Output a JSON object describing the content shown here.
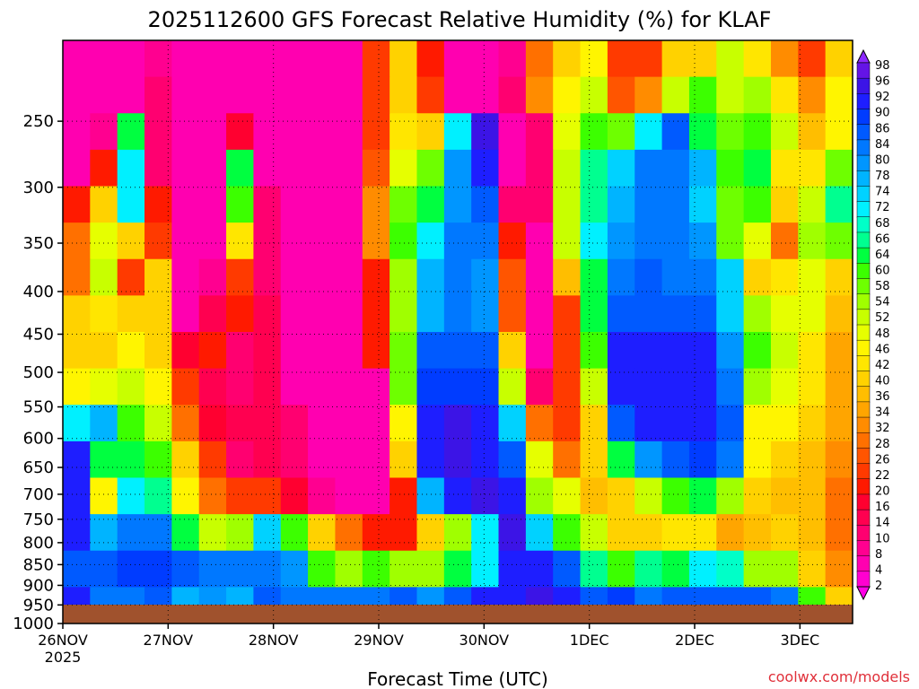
{
  "chart_data": {
    "type": "heatmap",
    "title": "2025112600 GFS Forecast Relative Humidity (%) for KLAF",
    "xlabel": "Forecast Time (UTC)",
    "ylabel": "",
    "x_ticks": [
      "26NOV",
      "27NOV",
      "28NOV",
      "29NOV",
      "30NOV",
      "1DEC",
      "2DEC",
      "3DEC"
    ],
    "x_tick_days": [
      0,
      1,
      2,
      3,
      4,
      5,
      6,
      7
    ],
    "x_tick_year": "2025",
    "xlim_days": [
      0,
      7.5
    ],
    "y_ticks": [
      250,
      300,
      350,
      400,
      450,
      500,
      550,
      600,
      650,
      700,
      750,
      800,
      850,
      900,
      950,
      1000
    ],
    "ylim": [
      200,
      1000
    ],
    "y_scale": "log",
    "grid": true,
    "legend": "right",
    "colorbar_levels": [
      2,
      4,
      8,
      10,
      14,
      16,
      20,
      22,
      26,
      28,
      32,
      34,
      36,
      40,
      42,
      46,
      48,
      52,
      54,
      58,
      60,
      64,
      66,
      68,
      72,
      74,
      78,
      80,
      84,
      86,
      90,
      92,
      96,
      98
    ],
    "colorbar_colors": [
      "#ff00e6",
      "#ff00d0",
      "#ff00b0",
      "#ff0090",
      "#ff0070",
      "#ff0050",
      "#ff0030",
      "#ff1a00",
      "#ff3a00",
      "#ff5500",
      "#ff7000",
      "#ff8c00",
      "#ffa500",
      "#ffbe00",
      "#ffd200",
      "#ffe600",
      "#fff500",
      "#e6ff00",
      "#c8ff00",
      "#a0ff00",
      "#6eff00",
      "#3cff00",
      "#00ff40",
      "#00ff90",
      "#00ffc8",
      "#00f0ff",
      "#00d2ff",
      "#00b4ff",
      "#0096ff",
      "#0078ff",
      "#005aff",
      "#003cff",
      "#1e1eff",
      "#3c14e6",
      "#6414e6",
      "#8c28ff"
    ],
    "rh_samples_percent": [
      [
        5,
        5,
        5,
        8,
        5,
        5,
        5,
        5,
        5,
        5,
        5,
        22,
        40,
        20,
        5,
        5,
        8,
        28,
        40,
        46,
        22,
        22,
        40,
        40,
        50,
        42,
        30,
        22,
        40
      ],
      [
        5,
        5,
        5,
        10,
        5,
        5,
        5,
        5,
        5,
        5,
        5,
        22,
        40,
        24,
        5,
        5,
        10,
        30,
        46,
        50,
        26,
        30,
        52,
        60,
        50,
        54,
        44,
        30,
        46
      ],
      [
        5,
        8,
        62,
        10,
        5,
        5,
        16,
        5,
        5,
        5,
        5,
        22,
        44,
        40,
        70,
        94,
        5,
        10,
        48,
        60,
        56,
        70,
        86,
        64,
        56,
        60,
        50,
        36,
        46
      ],
      [
        5,
        20,
        70,
        10,
        5,
        5,
        64,
        5,
        5,
        5,
        5,
        26,
        48,
        56,
        80,
        90,
        5,
        10,
        50,
        66,
        74,
        82,
        84,
        76,
        60,
        64,
        42,
        44,
        58
      ],
      [
        20,
        40,
        72,
        20,
        5,
        5,
        60,
        10,
        5,
        5,
        5,
        30,
        56,
        64,
        80,
        86,
        10,
        10,
        50,
        66,
        78,
        82,
        82,
        74,
        56,
        60,
        40,
        50,
        66
      ],
      [
        28,
        48,
        40,
        22,
        5,
        5,
        44,
        10,
        5,
        5,
        5,
        30,
        60,
        70,
        82,
        84,
        20,
        5,
        50,
        70,
        80,
        84,
        84,
        80,
        58,
        48,
        28,
        54,
        58
      ],
      [
        28,
        52,
        22,
        40,
        5,
        8,
        24,
        10,
        5,
        5,
        5,
        20,
        54,
        76,
        82,
        80,
        26,
        5,
        36,
        64,
        84,
        86,
        84,
        84,
        74,
        40,
        44,
        48,
        40
      ],
      [
        40,
        42,
        40,
        40,
        5,
        14,
        20,
        14,
        5,
        5,
        5,
        20,
        54,
        76,
        82,
        80,
        26,
        5,
        22,
        64,
        86,
        86,
        86,
        86,
        74,
        54,
        48,
        48,
        36
      ],
      [
        40,
        40,
        46,
        40,
        16,
        20,
        10,
        14,
        5,
        5,
        5,
        20,
        56,
        86,
        86,
        86,
        40,
        5,
        22,
        60,
        90,
        90,
        90,
        90,
        80,
        60,
        50,
        42,
        34
      ],
      [
        46,
        48,
        50,
        46,
        22,
        14,
        10,
        14,
        5,
        5,
        5,
        5,
        56,
        88,
        88,
        88,
        50,
        10,
        22,
        50,
        90,
        92,
        90,
        90,
        84,
        54,
        48,
        42,
        34
      ],
      [
        70,
        76,
        60,
        52,
        28,
        16,
        14,
        14,
        10,
        5,
        5,
        5,
        46,
        92,
        94,
        90,
        74,
        28,
        22,
        40,
        86,
        92,
        92,
        92,
        86,
        46,
        46,
        40,
        34
      ],
      [
        92,
        64,
        64,
        60,
        40,
        22,
        10,
        14,
        10,
        5,
        5,
        5,
        40,
        92,
        94,
        92,
        86,
        48,
        28,
        40,
        64,
        80,
        86,
        88,
        84,
        46,
        40,
        36,
        30
      ],
      [
        92,
        46,
        72,
        66,
        46,
        28,
        22,
        22,
        16,
        8,
        5,
        5,
        20,
        76,
        92,
        94,
        90,
        54,
        48,
        36,
        40,
        50,
        60,
        62,
        54,
        40,
        38,
        36,
        28
      ],
      [
        90,
        78,
        82,
        82,
        62,
        50,
        54,
        74,
        60,
        40,
        28,
        20,
        20,
        40,
        54,
        70,
        94,
        74,
        60,
        50,
        40,
        40,
        42,
        42,
        34,
        36,
        40,
        38,
        28
      ],
      [
        86,
        86,
        88,
        88,
        86,
        82,
        84,
        82,
        80,
        60,
        54,
        60,
        54,
        54,
        62,
        70,
        92,
        90,
        86,
        66,
        60,
        66,
        64,
        70,
        68,
        54,
        54,
        40,
        30
      ],
      [
        90,
        82,
        84,
        86,
        78,
        80,
        76,
        86,
        82,
        82,
        84,
        84,
        86,
        80,
        86,
        92,
        92,
        94,
        90,
        86,
        88,
        84,
        86,
        86,
        86,
        86,
        82,
        60,
        40
      ]
    ]
  },
  "credit": "coolwx.com/models"
}
